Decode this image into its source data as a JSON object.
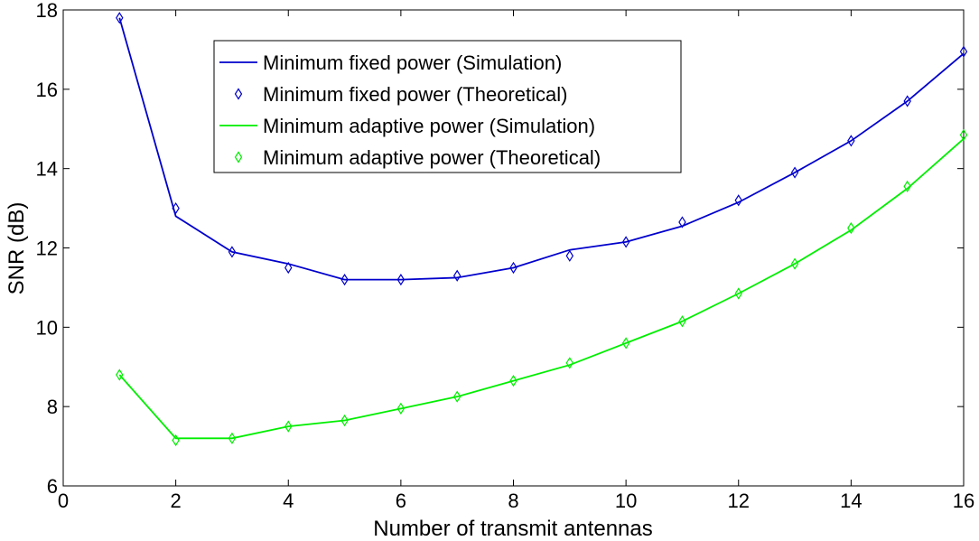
{
  "chart_data": {
    "type": "line",
    "title": "",
    "xlabel": "Number of transmit antennas",
    "ylabel": "SNR (dB)",
    "xlim": [
      0,
      16
    ],
    "ylim": [
      6,
      18
    ],
    "xticks": [
      0,
      2,
      4,
      6,
      8,
      10,
      12,
      14,
      16
    ],
    "yticks": [
      6,
      8,
      10,
      12,
      14,
      16,
      18
    ],
    "grid": false,
    "legend_position": "top-center",
    "x": [
      1,
      2,
      3,
      4,
      5,
      6,
      7,
      8,
      9,
      10,
      11,
      12,
      13,
      14,
      15,
      16
    ],
    "series": [
      {
        "name": "Minimum fixed power (Simulation)",
        "style": "line",
        "color": "#0000cc",
        "values": [
          17.8,
          12.8,
          11.9,
          11.6,
          11.2,
          11.2,
          11.25,
          11.5,
          11.95,
          12.15,
          12.55,
          13.15,
          13.9,
          14.7,
          15.7,
          16.9
        ]
      },
      {
        "name": "Minimum fixed power (Theoretical)",
        "style": "marker",
        "marker": "diamond",
        "color": "#0000cc",
        "values": [
          17.8,
          13.0,
          11.9,
          11.5,
          11.2,
          11.2,
          11.3,
          11.5,
          11.8,
          12.15,
          12.65,
          13.2,
          13.9,
          14.7,
          15.7,
          16.95
        ]
      },
      {
        "name": "Minimum adaptive power (Simulation)",
        "style": "line",
        "color": "#00ee00",
        "values": [
          8.8,
          7.2,
          7.2,
          7.5,
          7.65,
          7.95,
          8.25,
          8.65,
          9.05,
          9.6,
          10.15,
          10.85,
          11.6,
          12.45,
          13.5,
          14.75
        ]
      },
      {
        "name": "Minimum adaptive power (Theoretical)",
        "style": "marker",
        "marker": "diamond",
        "color": "#00ee00",
        "values": [
          8.8,
          7.15,
          7.2,
          7.5,
          7.65,
          7.95,
          8.25,
          8.65,
          9.1,
          9.6,
          10.15,
          10.85,
          11.6,
          12.5,
          13.55,
          14.85
        ]
      }
    ]
  }
}
